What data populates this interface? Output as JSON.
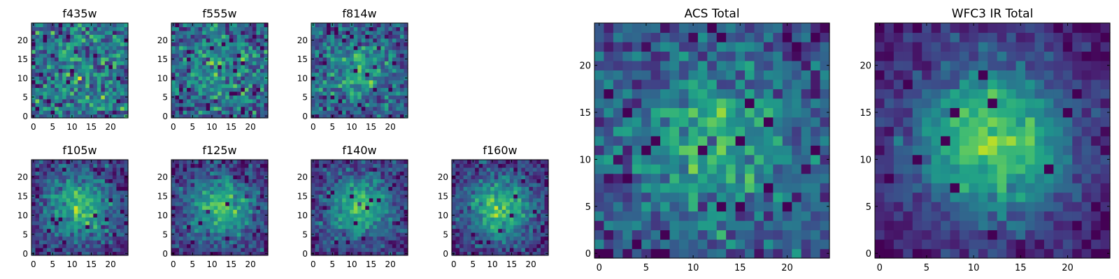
{
  "figure": {
    "description_colormap": "viridis"
  },
  "chart_data": [
    {
      "type": "heatmap",
      "title": "f435w",
      "grid_size": 25,
      "xticks": [
        0,
        5,
        10,
        15,
        20
      ],
      "yticks": [
        0,
        5,
        10,
        15,
        20
      ],
      "xlim": [
        -0.5,
        24.5
      ],
      "ylim": [
        -0.5,
        24.5
      ],
      "colormap": "viridis",
      "noise": 0.9,
      "signal": 0.1,
      "seed": 11
    },
    {
      "type": "heatmap",
      "title": "f555w",
      "grid_size": 25,
      "xticks": [
        0,
        5,
        10,
        15,
        20
      ],
      "yticks": [
        0,
        5,
        10,
        15,
        20
      ],
      "xlim": [
        -0.5,
        24.5
      ],
      "ylim": [
        -0.5,
        24.5
      ],
      "colormap": "viridis",
      "noise": 0.85,
      "signal": 0.2,
      "seed": 23
    },
    {
      "type": "heatmap",
      "title": "f814w",
      "grid_size": 25,
      "xticks": [
        0,
        5,
        10,
        15,
        20
      ],
      "yticks": [
        0,
        5,
        10,
        15,
        20
      ],
      "xlim": [
        -0.5,
        24.5
      ],
      "ylim": [
        -0.5,
        24.5
      ],
      "colormap": "viridis",
      "noise": 0.8,
      "signal": 0.3,
      "seed": 37
    },
    {
      "type": "heatmap",
      "title": "f105w",
      "grid_size": 25,
      "xticks": [
        0,
        5,
        10,
        15,
        20
      ],
      "yticks": [
        0,
        5,
        10,
        15,
        20
      ],
      "xlim": [
        -0.5,
        24.5
      ],
      "ylim": [
        -0.5,
        24.5
      ],
      "colormap": "viridis",
      "noise": 0.55,
      "signal": 0.45,
      "seed": 41
    },
    {
      "type": "heatmap",
      "title": "f125w",
      "grid_size": 25,
      "xticks": [
        0,
        5,
        10,
        15,
        20
      ],
      "yticks": [
        0,
        5,
        10,
        15,
        20
      ],
      "xlim": [
        -0.5,
        24.5
      ],
      "ylim": [
        -0.5,
        24.5
      ],
      "colormap": "viridis",
      "noise": 0.55,
      "signal": 0.45,
      "seed": 53
    },
    {
      "type": "heatmap",
      "title": "f140w",
      "grid_size": 25,
      "xticks": [
        0,
        5,
        10,
        15,
        20
      ],
      "yticks": [
        0,
        5,
        10,
        15,
        20
      ],
      "xlim": [
        -0.5,
        24.5
      ],
      "ylim": [
        -0.5,
        24.5
      ],
      "colormap": "viridis",
      "noise": 0.55,
      "signal": 0.5,
      "seed": 67
    },
    {
      "type": "heatmap",
      "title": "f160w",
      "grid_size": 25,
      "xticks": [
        0,
        5,
        10,
        15,
        20
      ],
      "yticks": [
        0,
        5,
        10,
        15,
        20
      ],
      "xlim": [
        -0.5,
        24.5
      ],
      "ylim": [
        -0.5,
        24.5
      ],
      "colormap": "viridis",
      "noise": 0.55,
      "signal": 0.5,
      "seed": 79
    },
    {
      "type": "heatmap",
      "title": "ACS Total",
      "grid_size": 25,
      "xticks": [
        0,
        5,
        10,
        15,
        20
      ],
      "yticks": [
        0,
        5,
        10,
        15,
        20
      ],
      "xlim": [
        -0.5,
        24.5
      ],
      "ylim": [
        -0.5,
        24.5
      ],
      "colormap": "viridis",
      "noise": 0.7,
      "signal": 0.35,
      "seed": 97
    },
    {
      "type": "heatmap",
      "title": "WFC3 IR Total",
      "grid_size": 25,
      "xticks": [
        0,
        5,
        10,
        15,
        20
      ],
      "yticks": [
        0,
        5,
        10,
        15,
        20
      ],
      "xlim": [
        -0.5,
        24.5
      ],
      "ylim": [
        -0.5,
        24.5
      ],
      "colormap": "viridis",
      "noise": 0.4,
      "signal": 0.65,
      "seed": 113
    }
  ]
}
